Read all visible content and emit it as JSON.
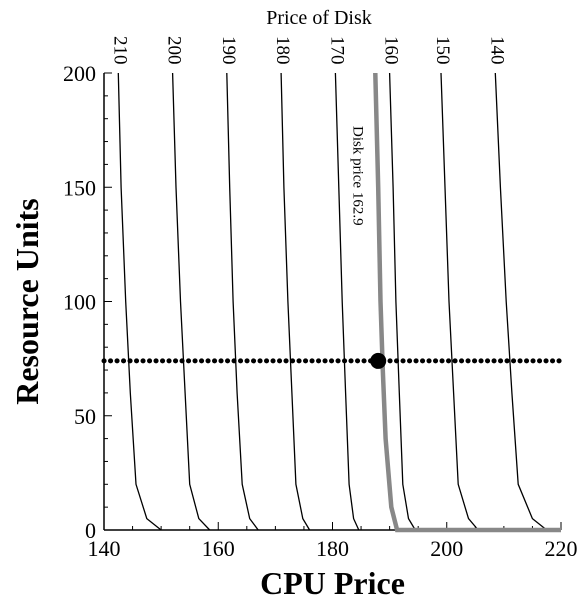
{
  "chart_data": {
    "type": "line",
    "title": "",
    "top_axis_title": "Price of Disk",
    "xlabel": "CPU Price",
    "ylabel": "Resource Units",
    "xlim": [
      140,
      220
    ],
    "ylim": [
      0,
      200
    ],
    "x_ticks": [
      140,
      160,
      180,
      200,
      220
    ],
    "y_ticks": [
      0,
      50,
      100,
      150,
      200
    ],
    "x_tick_labels": [
      "140",
      "160",
      "180",
      "200",
      "220"
    ],
    "y_tick_labels": [
      "0",
      "50",
      "100",
      "150",
      "200"
    ],
    "grid": false,
    "series": [
      {
        "name": "210",
        "points": [
          [
            142.5,
            200
          ],
          [
            143.0,
            150
          ],
          [
            143.8,
            100
          ],
          [
            144.6,
            60
          ],
          [
            145.6,
            20
          ],
          [
            147.5,
            5
          ],
          [
            150.0,
            0
          ]
        ]
      },
      {
        "name": "200",
        "points": [
          [
            152.0,
            200
          ],
          [
            152.6,
            150
          ],
          [
            153.4,
            100
          ],
          [
            154.2,
            60
          ],
          [
            155.0,
            20
          ],
          [
            156.6,
            5
          ],
          [
            158.5,
            0
          ]
        ]
      },
      {
        "name": "190",
        "points": [
          [
            161.5,
            200
          ],
          [
            162.0,
            150
          ],
          [
            162.6,
            100
          ],
          [
            163.3,
            60
          ],
          [
            164.2,
            20
          ],
          [
            165.5,
            5
          ],
          [
            167.0,
            0
          ]
        ]
      },
      {
        "name": "180",
        "points": [
          [
            171.0,
            200
          ],
          [
            171.5,
            150
          ],
          [
            172.2,
            100
          ],
          [
            172.9,
            60
          ],
          [
            173.6,
            20
          ],
          [
            174.8,
            5
          ],
          [
            176.0,
            0
          ]
        ]
      },
      {
        "name": "170",
        "points": [
          [
            180.5,
            200
          ],
          [
            181.1,
            150
          ],
          [
            181.7,
            100
          ],
          [
            182.3,
            60
          ],
          [
            182.9,
            20
          ],
          [
            183.7,
            5
          ],
          [
            184.6,
            0
          ]
        ]
      },
      {
        "name": "160",
        "points": [
          [
            190.0,
            200
          ],
          [
            190.6,
            150
          ],
          [
            191.1,
            100
          ],
          [
            191.7,
            60
          ],
          [
            192.3,
            20
          ],
          [
            193.3,
            5
          ],
          [
            194.5,
            0
          ]
        ]
      },
      {
        "name": "150",
        "points": [
          [
            199.0,
            200
          ],
          [
            199.7,
            150
          ],
          [
            200.4,
            100
          ],
          [
            201.2,
            60
          ],
          [
            202.0,
            20
          ],
          [
            203.8,
            5
          ],
          [
            205.5,
            0
          ]
        ]
      },
      {
        "name": "140",
        "points": [
          [
            208.5,
            200
          ],
          [
            209.4,
            150
          ],
          [
            210.4,
            100
          ],
          [
            211.4,
            60
          ],
          [
            212.5,
            20
          ],
          [
            215.0,
            5
          ],
          [
            217.5,
            0
          ]
        ]
      }
    ],
    "highlight_series": {
      "name": "Disk price 162.9",
      "color": "#888888",
      "points": [
        [
          187.5,
          200
        ],
        [
          188.0,
          150
        ],
        [
          188.4,
          100
        ],
        [
          188.8,
          70
        ],
        [
          189.3,
          40
        ],
        [
          190.3,
          10
        ],
        [
          191.3,
          0
        ],
        [
          220.0,
          0
        ]
      ]
    },
    "reference_line": {
      "y": 74,
      "x_range": [
        140,
        220
      ],
      "style": "dotted",
      "color": "#000000"
    },
    "marker_point": {
      "x": 188.0,
      "y": 74,
      "color": "#000000"
    }
  }
}
